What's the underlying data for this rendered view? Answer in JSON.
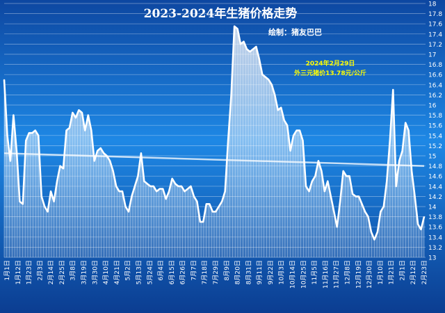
{
  "chart_data": {
    "type": "area",
    "title": "2023-2024年生猪价格走势",
    "subtitle": "绘制：猪友巴巴",
    "annotation": [
      "2024年2月29日",
      "外三元猪价13.78元/公斤"
    ],
    "yticks": [
      "18",
      "17.8",
      "17.6",
      "17.4",
      "17.2",
      "17",
      "16.8",
      "16.6",
      "16.4",
      "16.2",
      "16",
      "15.8",
      "15.6",
      "15.4",
      "15.2",
      "15",
      "14.8",
      "14.6",
      "14.4",
      "14.2",
      "14",
      "13.8",
      "13.6",
      "13.4",
      "13.2",
      "13"
    ],
    "ylim": [
      13,
      18
    ],
    "xlabels": [
      "1月1日",
      "1月12日",
      "1月23日",
      "2月3日",
      "2月14日",
      "2月25日",
      "3月8日",
      "3月19日",
      "3月30日",
      "4月10日",
      "4月21日",
      "5月2日",
      "5月13日",
      "5月24日",
      "6月4日",
      "6月15日",
      "6月26日",
      "7月7日",
      "7月18日",
      "7月29日",
      "8月9日",
      "8月20日",
      "8月31日",
      "9月11日",
      "9月22日",
      "10月3日",
      "10月14日",
      "10月25日",
      "11月5日",
      "11月16日",
      "11月27日",
      "12月8日",
      "12月19日",
      "12月30日",
      "1月10日",
      "1月21日",
      "2月1日",
      "2月12日",
      "2月23日"
    ],
    "series": [
      {
        "values": [
          16.5,
          15.4,
          14.9,
          15.8,
          15.1,
          14.1,
          14.05,
          15.3,
          15.45,
          15.45,
          15.5,
          15.4,
          14.2,
          14.0,
          13.9,
          14.3,
          14.1,
          14.5,
          14.8,
          14.75,
          15.5,
          15.55,
          15.85,
          15.75,
          15.9,
          15.85,
          15.5,
          15.8,
          15.5,
          14.9,
          15.1,
          15.15,
          15.05,
          15.0,
          14.9,
          14.7,
          14.4,
          14.3,
          14.3,
          14.0,
          13.9,
          14.2,
          14.4,
          14.6,
          15.05,
          14.5,
          14.45,
          14.4,
          14.4,
          14.3,
          14.35,
          14.35,
          14.15,
          14.3,
          14.55,
          14.45,
          14.4,
          14.4,
          14.3,
          14.35,
          14.4,
          14.2,
          14.1,
          13.7,
          13.7,
          14.05,
          14.05,
          13.9,
          13.9,
          14.0,
          14.1,
          14.3,
          15.3,
          16.2,
          17.55,
          17.5,
          17.2,
          17.25,
          17.1,
          17.05,
          17.1,
          17.15,
          16.9,
          16.6,
          16.55,
          16.5,
          16.4,
          16.2,
          15.9,
          15.95,
          15.7,
          15.6,
          15.1,
          15.4,
          15.5,
          15.5,
          15.3,
          14.4,
          14.3,
          14.5,
          14.6,
          14.9,
          14.7,
          14.3,
          14.5,
          14.2,
          13.9,
          13.6,
          14.1,
          14.7,
          14.6,
          14.6,
          14.25,
          14.2,
          14.2,
          14.05,
          13.9,
          13.8,
          13.5,
          13.35,
          13.5,
          13.9,
          14.0,
          14.5,
          15.3,
          16.3,
          14.4,
          14.9,
          15.1,
          15.65,
          15.5,
          14.7,
          14.2,
          13.65,
          13.55,
          13.8
        ],
        "trend": [
          15.05,
          14.8
        ]
      }
    ]
  }
}
